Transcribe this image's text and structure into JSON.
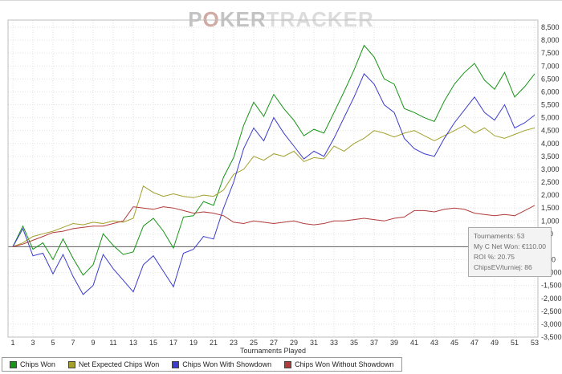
{
  "watermark": {
    "p": "P",
    "o": "O",
    "ker": "KER",
    "tracker": "TRACKER"
  },
  "tooltip": {
    "lines": [
      "Tournaments: 53",
      "My C Net Won: €110.00",
      "ROI %: 20.75",
      "ChipsEV/turniej: 86"
    ]
  },
  "chart_data": {
    "type": "line",
    "title": "",
    "xlabel": "Tournaments Played",
    "ylabel": "",
    "grid": true,
    "legend_position": "bottom-left",
    "zero_line": true,
    "ylim": [
      -3500,
      8500
    ],
    "y_tick_step": 500,
    "x": [
      1,
      2,
      3,
      4,
      5,
      6,
      7,
      8,
      9,
      10,
      11,
      12,
      13,
      14,
      15,
      16,
      17,
      18,
      19,
      20,
      21,
      22,
      23,
      24,
      25,
      26,
      27,
      28,
      29,
      30,
      31,
      32,
      33,
      34,
      35,
      36,
      37,
      38,
      39,
      40,
      41,
      42,
      43,
      44,
      45,
      46,
      47,
      48,
      49,
      50,
      51,
      52,
      53
    ],
    "x_ticks": [
      1,
      3,
      5,
      7,
      9,
      11,
      13,
      15,
      17,
      19,
      21,
      23,
      25,
      27,
      29,
      31,
      33,
      35,
      37,
      39,
      41,
      43,
      45,
      47,
      49,
      51,
      53
    ],
    "series": [
      {
        "name": "Chips Won",
        "color": "#169416",
        "values": [
          0,
          800,
          -100,
          150,
          -500,
          300,
          -450,
          -1100,
          -700,
          500,
          50,
          -300,
          -200,
          800,
          1100,
          600,
          -50,
          1150,
          1200,
          1750,
          1600,
          2700,
          3450,
          4700,
          5600,
          5050,
          5900,
          5350,
          4900,
          4300,
          4550,
          4400,
          5200,
          6000,
          6850,
          7800,
          7350,
          6500,
          6300,
          5350,
          5200,
          5000,
          4850,
          5650,
          6300,
          6750,
          7100,
          6450,
          6100,
          6750,
          5800,
          6200,
          6700
        ]
      },
      {
        "name": "Net Expected Chips Won",
        "color": "#a3a02b",
        "values": [
          0,
          150,
          400,
          500,
          600,
          750,
          900,
          850,
          950,
          900,
          1000,
          950,
          1100,
          2350,
          2100,
          1950,
          2050,
          1950,
          1900,
          2000,
          1950,
          2200,
          2800,
          3000,
          3500,
          3350,
          3600,
          3500,
          3700,
          3300,
          3450,
          3400,
          3900,
          3700,
          4000,
          4200,
          4500,
          4400,
          4250,
          4400,
          4500,
          4300,
          4100,
          4300,
          4500,
          4700,
          4400,
          4600,
          4300,
          4200,
          4350,
          4500,
          4600
        ]
      },
      {
        "name": "Chips Won With Showdown",
        "color": "#3c3ccd",
        "values": [
          0,
          700,
          -350,
          -250,
          -1050,
          -300,
          -1150,
          -1850,
          -1500,
          -300,
          -850,
          -1300,
          -1750,
          -700,
          -350,
          -950,
          -1550,
          -250,
          -100,
          400,
          300,
          1500,
          2500,
          3800,
          4600,
          4100,
          5000,
          4400,
          3900,
          3400,
          3700,
          3500,
          4200,
          5000,
          5800,
          6700,
          6300,
          5500,
          5200,
          4200,
          3800,
          3600,
          3500,
          4200,
          4800,
          5300,
          5800,
          5200,
          4900,
          5500,
          4600,
          4800,
          5100
        ]
      },
      {
        "name": "Chips Won Without Showdown",
        "color": "#b23b3b",
        "values": [
          0,
          100,
          250,
          400,
          550,
          600,
          700,
          750,
          800,
          800,
          900,
          1000,
          1550,
          1500,
          1450,
          1550,
          1500,
          1400,
          1300,
          1350,
          1300,
          1200,
          950,
          900,
          1000,
          950,
          900,
          950,
          1000,
          900,
          850,
          900,
          1000,
          1000,
          1050,
          1100,
          1050,
          1000,
          1100,
          1150,
          1400,
          1400,
          1350,
          1450,
          1500,
          1450,
          1300,
          1250,
          1200,
          1250,
          1200,
          1400,
          1600
        ]
      }
    ]
  }
}
